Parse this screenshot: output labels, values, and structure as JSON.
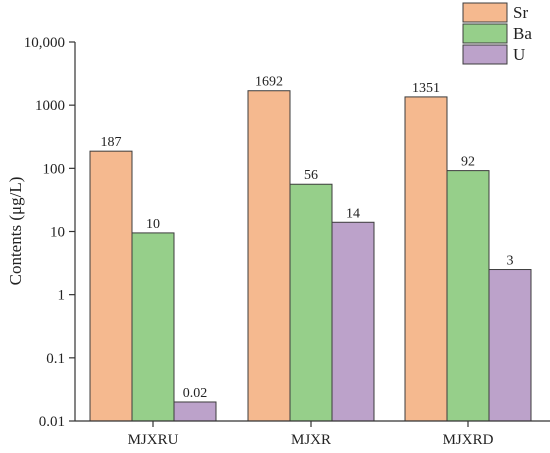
{
  "chart_data": {
    "type": "bar",
    "categories": [
      "MJXRU",
      "MJXR",
      "MJXRD"
    ],
    "series": [
      {
        "name": "Sr",
        "color": "#F5B98F",
        "values": [
          187,
          1692,
          1351
        ],
        "labels": [
          "187",
          "1692",
          "1351"
        ]
      },
      {
        "name": "Ba",
        "color": "#96CF8A",
        "values": [
          9.5,
          56,
          92
        ],
        "labels": [
          "10",
          "56",
          "92"
        ]
      },
      {
        "name": "U",
        "color": "#BCA2CA",
        "values": [
          0.02,
          14,
          2.5
        ],
        "labels": [
          "0.02",
          "14",
          "3"
        ]
      }
    ],
    "ylabel": "Contents (μg/L)",
    "yscale": "log",
    "ylim": [
      0.01,
      10000
    ],
    "yticks": [
      0.01,
      0.1,
      1,
      10,
      100,
      1000,
      10000
    ],
    "ytick_labels": [
      "0.01",
      "0.1",
      "1",
      "10",
      "100",
      "1000",
      "10,000"
    ],
    "grid": false,
    "legend_position": "top-right"
  }
}
